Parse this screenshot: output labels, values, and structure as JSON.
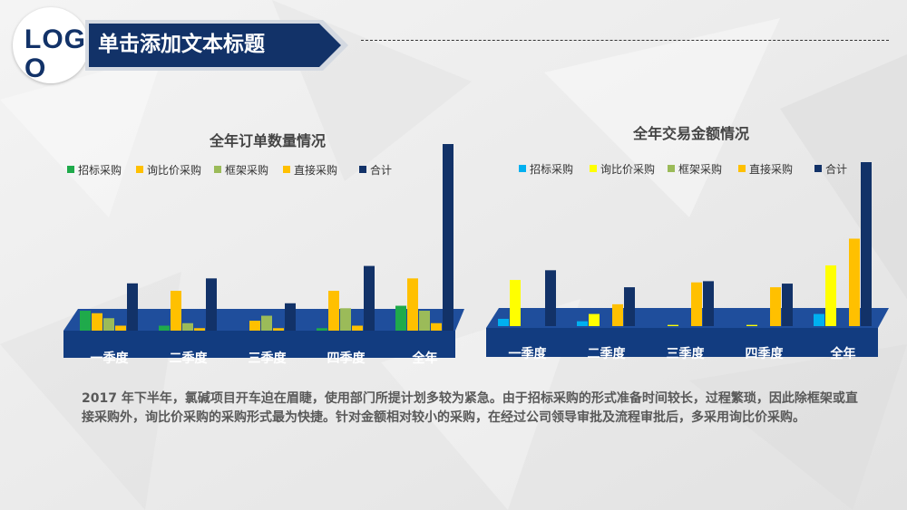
{
  "logo": {
    "text": "LOGO"
  },
  "header": {
    "title": "单击添加文本标题"
  },
  "colors": {
    "navy": "#123268",
    "banner_border": "#c9cfd8",
    "floor": "#1f4e9c",
    "floor_front": "#123c80"
  },
  "chart_data": [
    {
      "type": "bar",
      "title": "全年订单数量情况",
      "categories": [
        "一季度",
        "二季度",
        "三季度",
        "四季度",
        "全年"
      ],
      "series": [
        {
          "name": "招标采购",
          "color": "#1faa4b",
          "values": [
            16,
            4,
            0,
            2,
            20
          ]
        },
        {
          "name": "询比价采购",
          "color": "#ffc000",
          "values": [
            14,
            32,
            8,
            32,
            42
          ]
        },
        {
          "name": "框架采购",
          "color": "#9bbb59",
          "values": [
            10,
            6,
            12,
            18,
            16
          ]
        },
        {
          "name": "直接采购",
          "color": "#ffc000",
          "values": [
            4,
            2,
            2,
            4,
            6
          ]
        },
        {
          "name": "合计",
          "color": "#123268",
          "values": [
            38,
            42,
            22,
            52,
            150
          ]
        }
      ],
      "ylim": [
        0,
        150
      ],
      "legend": "top"
    },
    {
      "type": "bar",
      "title": "全年交易金额情况",
      "categories": [
        "一季度",
        "二季度",
        "三季度",
        "四季度",
        "全年"
      ],
      "series": [
        {
          "name": "招标采购",
          "color": "#00b0f0",
          "values": [
            6,
            4,
            0,
            0,
            10
          ]
        },
        {
          "name": "询比价采购",
          "color": "#ffff00",
          "values": [
            38,
            10,
            1,
            1,
            50
          ]
        },
        {
          "name": "框架采购",
          "color": "#9bbb59",
          "values": [
            0,
            0,
            0,
            0,
            0
          ]
        },
        {
          "name": "直接采购",
          "color": "#ffc000",
          "values": [
            0,
            18,
            36,
            32,
            72
          ]
        },
        {
          "name": "合计",
          "color": "#123268",
          "values": [
            46,
            32,
            37,
            35,
            135
          ]
        }
      ],
      "ylim": [
        0,
        135
      ],
      "legend": "top"
    }
  ],
  "description": "2017 年下半年，氯碱项目开车迫在眉睫，使用部门所提计划多较为紧急。由于招标采购的形式准备时间较长，过程繁琐，因此除框架或直接采购外，询比价采购的采购形式最为快捷。针对金额相对较小的采购，在经过公司领导审批及流程审批后，多采用询比价采购。"
}
